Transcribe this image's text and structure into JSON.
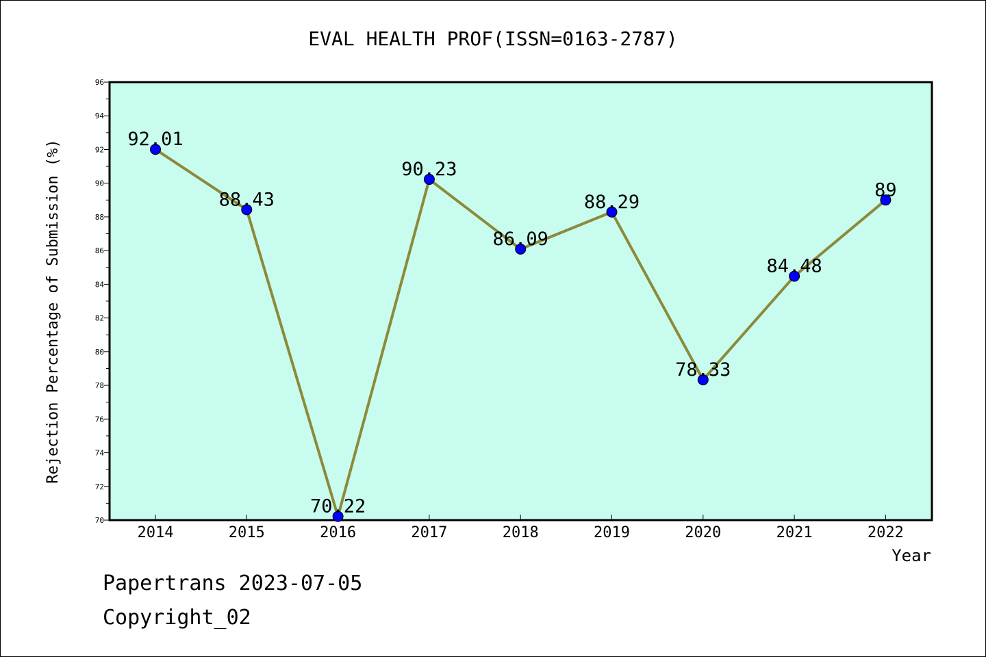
{
  "chart_data": {
    "type": "line",
    "title": "EVAL HEALTH PROF(ISSN=0163-2787)",
    "xlabel": "Year",
    "ylabel": "Rejection Percentage of Submission (%)",
    "categories": [
      "2014",
      "2015",
      "2016",
      "2017",
      "2018",
      "2019",
      "2020",
      "2021",
      "2022"
    ],
    "series": [
      {
        "values": [
          92.01,
          88.43,
          70.22,
          90.23,
          86.09,
          88.29,
          78.33,
          84.48,
          89
        ],
        "labels": [
          "92.01",
          "88.43",
          "70.22",
          "90.23",
          "86.09",
          "88.29",
          "78.33",
          "84.48",
          "89"
        ]
      }
    ],
    "ylim": [
      70,
      96
    ],
    "yticks": [
      "70",
      "72",
      "74",
      "76",
      "78",
      "80",
      "82",
      "84",
      "86",
      "88",
      "90",
      "92",
      "94",
      "96"
    ],
    "grid": false,
    "colors": {
      "plot_background": "#c8fcee",
      "line": "#8c8a3a",
      "marker": "#0000ff",
      "axes": "#000000"
    }
  },
  "footer": {
    "line1": "Papertrans 2023-07-05",
    "line2": "Copyright_02"
  }
}
